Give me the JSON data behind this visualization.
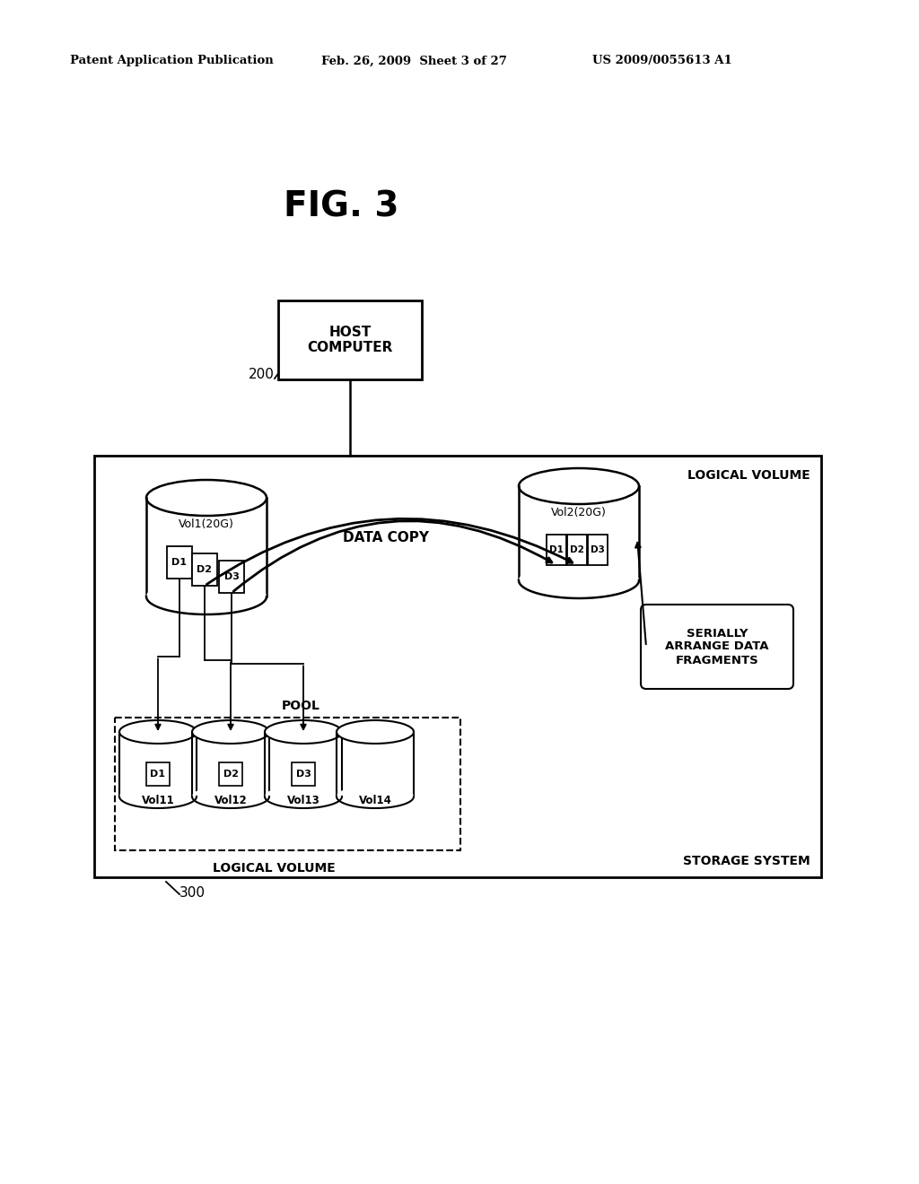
{
  "bg_color": "#ffffff",
  "header_left": "Patent Application Publication",
  "header_center": "Feb. 26, 2009  Sheet 3 of 27",
  "header_right": "US 2009/0055613 A1",
  "fig_label": "FIG. 3",
  "host_label": "HOST\nCOMPUTER",
  "host_ref": "200",
  "storage_label": "STORAGE SYSTEM",
  "logical_volume_top": "LOGICAL VOLUME",
  "pool_label": "POOL",
  "logical_volume_pool": "LOGICAL VOLUME",
  "data_copy_label": "DATA COPY",
  "serially_label": "SERIALLY\nARRANGE DATA\nFRAGMENTS",
  "ref300": "300",
  "vol1_label": "Vol1(20G)",
  "vol2_label": "Vol2(20G)",
  "vol11_label": "Vol11",
  "vol12_label": "Vol12",
  "vol13_label": "Vol13",
  "vol14_label": "Vol14"
}
